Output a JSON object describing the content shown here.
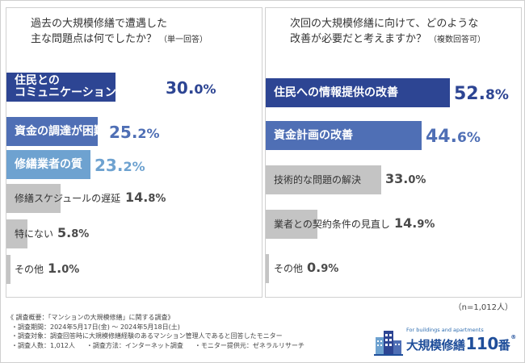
{
  "colors": {
    "darkBlue": "#2d4593",
    "midBlue": "#4f6fb5",
    "lightBlue": "#6ea2d0",
    "gray": "#c4c4c4",
    "grayText": "#4a4a4a"
  },
  "chart_data": [
    {
      "type": "bar",
      "orientation": "horizontal",
      "title": "過去の大規模修繕で遭遇した主な問題点は何でしたか？（単一回答）",
      "title_lines": [
        "過去の大規模修繕で遭遇した",
        "主な問題点は何でしたか？"
      ],
      "title_note": "（単一回答）",
      "unit": "%",
      "xlim": [
        0,
        30
      ],
      "categories": [
        "住民との\nコミュニケーションが難しい",
        "資金の調達が困難",
        "修繕業者の質",
        "修繕スケジュールの遅延",
        "特にない",
        "その他"
      ],
      "values": [
        30.0,
        25.2,
        23.2,
        14.8,
        5.8,
        1.0
      ],
      "value_labels": [
        {
          "int": "30.",
          "dec": "0%"
        },
        {
          "int": "25.",
          "dec": "2%"
        },
        {
          "int": "23.",
          "dec": "2%"
        },
        {
          "int": "14.",
          "dec": "8%"
        },
        {
          "int": "5.",
          "dec": "8%"
        },
        {
          "int": "1.",
          "dec": "0%"
        }
      ]
    },
    {
      "type": "bar",
      "orientation": "horizontal",
      "title": "次回の大規模修繕に向けて、どのような改善が必要だと考えますか？（複数回答可）",
      "title_lines": [
        "次回の大規模修繕に向けて、どのような",
        "改善が必要だと考えますか？"
      ],
      "title_note": "（複数回答可）",
      "unit": "%",
      "xlim": [
        0,
        52.8
      ],
      "categories": [
        "住民への情報提供の改善",
        "資金計画の改善",
        "技術的な問題の解決",
        "業者との契約条件の見直し",
        "その他"
      ],
      "values": [
        52.8,
        44.6,
        33.0,
        14.9,
        0.9
      ],
      "value_labels": [
        {
          "int": "52.",
          "dec": "8%"
        },
        {
          "int": "44.",
          "dec": "6%"
        },
        {
          "int": "33.",
          "dec": "0%"
        },
        {
          "int": "14.",
          "dec": "9%"
        },
        {
          "int": "0.",
          "dec": "9%"
        }
      ]
    }
  ],
  "n_count": "（n=1,012人）",
  "survey": {
    "heading": "《 調査概要：「マンションの大規模修繕」に関する調査》",
    "period": "・調査期間：2024年5月17日(金) ～ 2024年5月18日(土)",
    "target": "・調査対象：調査回答時に大規模修繕経験のあるマンション管理人であると回答したモニター",
    "count": "・調査人数：1,012人",
    "method": "・調査方法：インターネット調査",
    "provider": "・モニター提供元：ゼネラルリサーチ"
  },
  "logo": {
    "tagline": "For buildings and apartments",
    "name": "大規模修繕",
    "number": "110",
    "suffix": "番",
    "reg": "®"
  }
}
